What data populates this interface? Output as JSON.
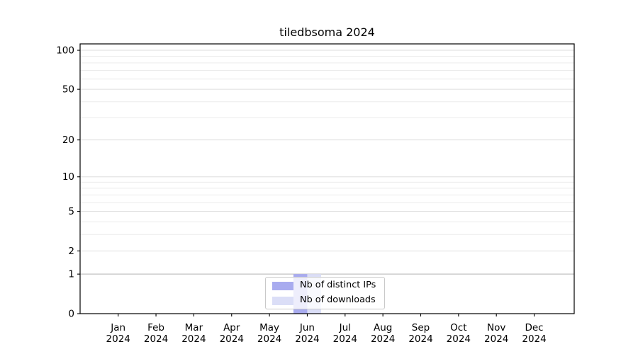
{
  "figure": {
    "title": "tiledbsoma 2024",
    "background": "#ffffff"
  },
  "legend": {
    "items": [
      {
        "label": "Nb of distinct IPs",
        "color": "#a8abef"
      },
      {
        "label": "Nb of downloads",
        "color": "#dbdef7"
      }
    ]
  },
  "chart_data": {
    "type": "bar",
    "title": "tiledbsoma 2024",
    "categories": [
      "Jan",
      "Feb",
      "Mar",
      "Apr",
      "May",
      "Jun",
      "Jul",
      "Aug",
      "Sep",
      "Oct",
      "Nov",
      "Dec"
    ],
    "year_label": "2024",
    "series": [
      {
        "name": "Nb of distinct IPs",
        "color": "#a8abef",
        "values": [
          0,
          0,
          0,
          0,
          0,
          1,
          0,
          0,
          0,
          0,
          0,
          0
        ]
      },
      {
        "name": "Nb of downloads",
        "color": "#dbdef7",
        "values": [
          0,
          0,
          0,
          0,
          0,
          1,
          0,
          0,
          0,
          0,
          0,
          0
        ]
      }
    ],
    "y_scale": "log1p",
    "y_major_ticks": [
      0,
      1,
      2,
      5,
      10,
      20,
      50,
      100
    ],
    "y_minor_ticks": [
      3,
      4,
      6,
      7,
      8,
      9,
      30,
      40,
      60,
      70,
      80,
      90
    ],
    "ylim": [
      0,
      112
    ],
    "grid": true,
    "legend_position": "lower center",
    "colors": {
      "minor_grid": "#ececec",
      "major_grid": "#dddddd",
      "baseline_grid": "#c2c2c2",
      "axis": "#000000",
      "text": "#000000"
    }
  }
}
